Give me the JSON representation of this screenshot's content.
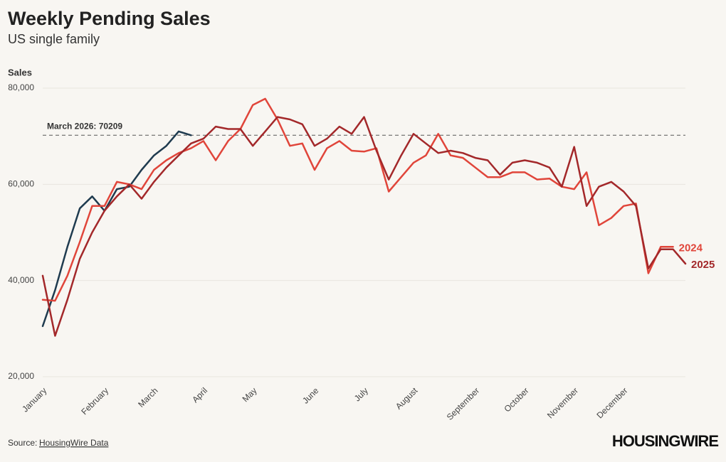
{
  "chart_data": {
    "type": "line",
    "title": "Weekly Pending Sales",
    "subtitle": "US single family",
    "y_label": "Sales",
    "categories": [
      "January",
      null,
      null,
      null,
      null,
      "February",
      null,
      null,
      null,
      "March",
      null,
      null,
      null,
      "April",
      null,
      null,
      null,
      "May",
      null,
      null,
      null,
      null,
      "June",
      null,
      null,
      null,
      "July",
      null,
      null,
      null,
      "August",
      null,
      null,
      null,
      null,
      "September",
      null,
      null,
      null,
      "October",
      null,
      null,
      null,
      "November",
      null,
      null,
      null,
      "December",
      null,
      null,
      null,
      null,
      null
    ],
    "series": [
      {
        "color": "#1f3b4f",
        "values": [
          30500,
          38000,
          47000,
          55000,
          57500,
          54500,
          59000,
          59500,
          63000,
          66000,
          68000,
          71000,
          70200,
          null,
          null,
          null,
          null,
          null,
          null,
          null,
          null,
          null,
          null,
          null,
          null,
          null,
          null,
          null,
          null,
          null,
          null,
          null,
          null,
          null,
          null,
          null,
          null,
          null,
          null,
          null,
          null,
          null,
          null,
          null,
          null,
          null,
          null,
          null,
          null,
          null,
          null,
          null,
          null
        ]
      },
      {
        "name": "2024",
        "color": "#e0453a",
        "values": [
          36000,
          35800,
          41000,
          48000,
          55500,
          55500,
          60500,
          60000,
          59000,
          63000,
          65000,
          66500,
          67500,
          69000,
          65000,
          69000,
          71500,
          76500,
          77800,
          73500,
          68000,
          68500,
          63000,
          67500,
          69000,
          67000,
          66800,
          67500,
          58500,
          61500,
          64500,
          66000,
          70500,
          66000,
          65500,
          63500,
          61500,
          61500,
          62500,
          62500,
          61000,
          61200,
          59500,
          59000,
          62500,
          51500,
          53000,
          55500,
          56000,
          41500,
          47000,
          47000,
          null
        ]
      },
      {
        "name": "2025",
        "color": "#a3282a",
        "values": [
          41000,
          28500,
          36000,
          44500,
          50000,
          54500,
          57500,
          60000,
          57000,
          60500,
          63500,
          66000,
          68500,
          69500,
          72000,
          71500,
          71500,
          68000,
          71000,
          74000,
          73500,
          72500,
          68000,
          69500,
          72000,
          70500,
          74000,
          67000,
          61000,
          66000,
          70500,
          68500,
          66500,
          67000,
          66500,
          65500,
          65000,
          62000,
          64500,
          65000,
          64500,
          63500,
          59500,
          67800,
          55500,
          59500,
          60500,
          58500,
          55500,
          42500,
          46500,
          46500,
          43500
        ]
      }
    ],
    "ylim": [
      20000,
      80000
    ],
    "yticks": [
      {
        "value": 20000,
        "label": "20,000"
      },
      {
        "value": 40000,
        "label": "40,000"
      },
      {
        "value": 60000,
        "label": "60,000"
      },
      {
        "value": 80000,
        "label": "80,000"
      }
    ],
    "grid": true,
    "reference_line": {
      "value": 70209,
      "label": "March 2026: 70209"
    },
    "source_label": "Source:",
    "source_link": "HousingWire Data",
    "logo": "HOUSINGWIRE"
  }
}
